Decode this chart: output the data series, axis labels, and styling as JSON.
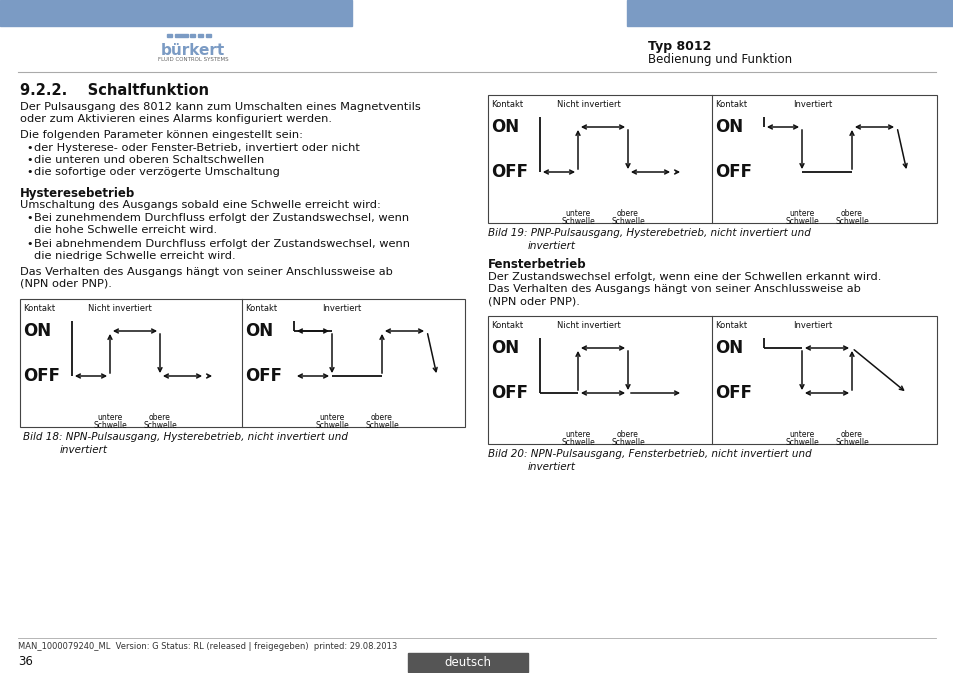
{
  "title_right": "Typ 8012",
  "subtitle_right": "Bedienung und Funktion",
  "header_color": "#7b9bc4",
  "page_number": "36",
  "page_label": "deutsch",
  "footer_text": "MAN_1000079240_ML  Version: G Status: RL (released | freigegeben)  printed: 29.08.2013",
  "section_title": "9.2.2.    Schaltfunktion",
  "para1a": "Der Pulsausgang des 8012 kann zum Umschalten eines Magnetventils",
  "para1b": "oder zum Aktivieren eines Alarms konfiguriert werden.",
  "para2": "Die folgenden Parameter können eingestellt sein:",
  "bullets1": [
    "der Hysterese- oder Fenster-Betrieb, invertiert oder nicht",
    "die unteren und oberen Schaltschwellen",
    "die sofortige oder verzögerte Umschaltung"
  ],
  "hysterese_title": "Hysteresebetrieb",
  "hysterese_para": "Umschaltung des Ausgangs sobald eine Schwelle erreicht wird:",
  "hysterese_bullets": [
    [
      "Bei zunehmendem Durchfluss erfolgt der Zustandswechsel, wenn",
      "die hohe Schwelle erreicht wird."
    ],
    [
      "Bei abnehmendem Durchfluss erfolgt der Zustandswechsel, wenn",
      "die niedrige Schwelle erreicht wird."
    ]
  ],
  "anschluss_para": [
    "Das Verhalten des Ausgangs hängt von seiner Anschlussweise ab",
    "(NPN oder PNP)."
  ],
  "fenster_title": "Fensterbetrieb",
  "fenster_para": [
    "Der Zustandswechsel erfolgt, wenn eine der Schwellen erkannt wird.",
    "Das Verhalten des Ausgangs hängt von seiner Anschlussweise ab",
    "(NPN oder PNP)."
  ]
}
